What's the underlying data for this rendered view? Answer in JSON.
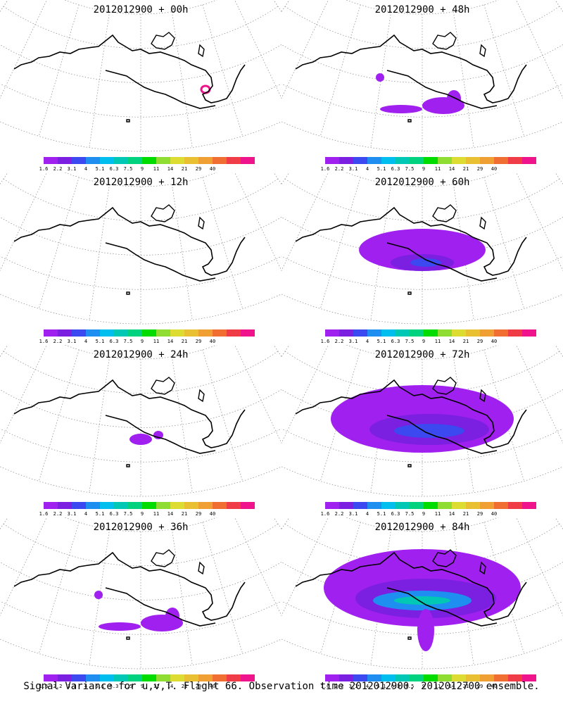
{
  "panels": [
    {
      "title": "2012012900 + 00h",
      "level": 0
    },
    {
      "title": "2012012900 + 48h",
      "level": 2
    },
    {
      "title": "2012012900 + 12h",
      "level": 0
    },
    {
      "title": "2012012900 + 60h",
      "level": 3
    },
    {
      "title": "2012012900 + 24h",
      "level": 1
    },
    {
      "title": "2012012900 + 72h",
      "level": 4
    },
    {
      "title": "2012012900 + 36h",
      "level": 2
    },
    {
      "title": "2012012900 + 84h",
      "level": 5
    }
  ],
  "colorbar": {
    "colors": [
      "#a020f0",
      "#7b1fe0",
      "#3c48f0",
      "#1e8ff0",
      "#00bfef",
      "#00c8b4",
      "#00d27f",
      "#00dc00",
      "#8fdc32",
      "#dcdc32",
      "#e8c032",
      "#f0a032",
      "#f06e32",
      "#f03c46",
      "#f0148c"
    ],
    "labels": [
      "1.6",
      "2.2",
      "3.1",
      "4",
      "5.1",
      "6.3",
      "7.5",
      "9",
      "11",
      "14",
      "21",
      "29",
      "40"
    ]
  },
  "caption": "Signal Variance for u,v,T. Flight 66. Observation time 2012012900. 2012012700 ensemble."
}
